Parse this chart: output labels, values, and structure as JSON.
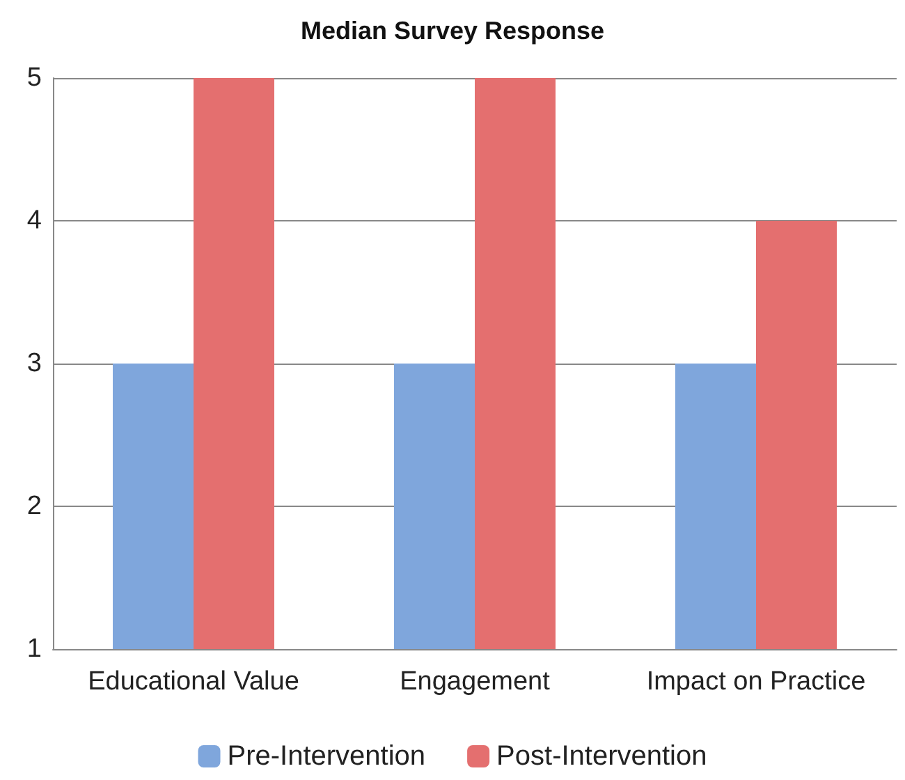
{
  "chart_data": {
    "type": "bar",
    "title": "Median Survey Response",
    "categories": [
      "Educational Value",
      "Engagement",
      "Impact on Practice"
    ],
    "series": [
      {
        "name": "Pre-Intervention",
        "color": "#7fa6dc",
        "values": [
          3,
          3,
          3
        ]
      },
      {
        "name": "Post-Intervention",
        "color": "#e46f6f",
        "values": [
          5,
          5,
          4
        ]
      }
    ],
    "ylim": [
      1,
      5
    ],
    "yticks": [
      1,
      2,
      3,
      4,
      5
    ],
    "grid": "y",
    "legend": "bottom"
  }
}
